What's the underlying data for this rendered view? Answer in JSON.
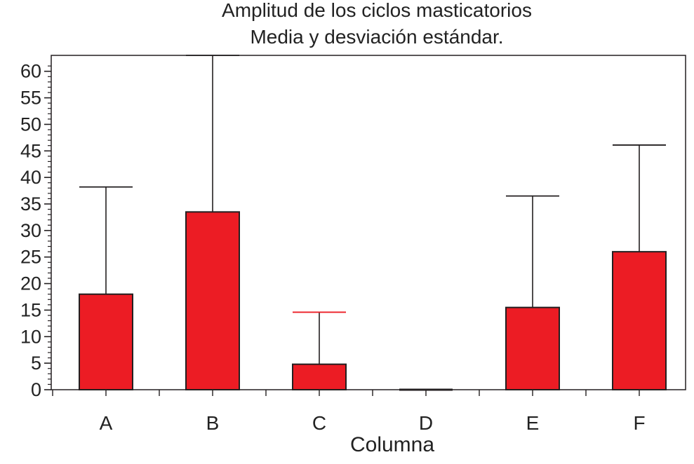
{
  "chart_data": {
    "type": "bar",
    "title": "Amplitud de los ciclos masticatorios",
    "subtitle": "Media y desviación estándar.",
    "xlabel": "Columna",
    "ylabel": "",
    "categories": [
      "A",
      "B",
      "C",
      "D",
      "E",
      "F"
    ],
    "series": [
      {
        "values": [
          18,
          33.5,
          4.8,
          0,
          15.5,
          26
        ],
        "error_upper": [
          38.2,
          63,
          14.6,
          0,
          36.5,
          46.1
        ]
      }
    ],
    "ylim": [
      0,
      63
    ],
    "yticks": [
      0,
      5,
      10,
      15,
      20,
      25,
      30,
      35,
      40,
      45,
      50,
      55,
      60
    ],
    "minor_tick_step": 1,
    "grid": false,
    "legend": "none",
    "colors": {
      "bar_fill": "#ec1c24",
      "bar_stroke": "#231f20",
      "error_bar": "#231f20",
      "error_bar_C": "#ec1c24",
      "axis": "#231f20"
    }
  }
}
